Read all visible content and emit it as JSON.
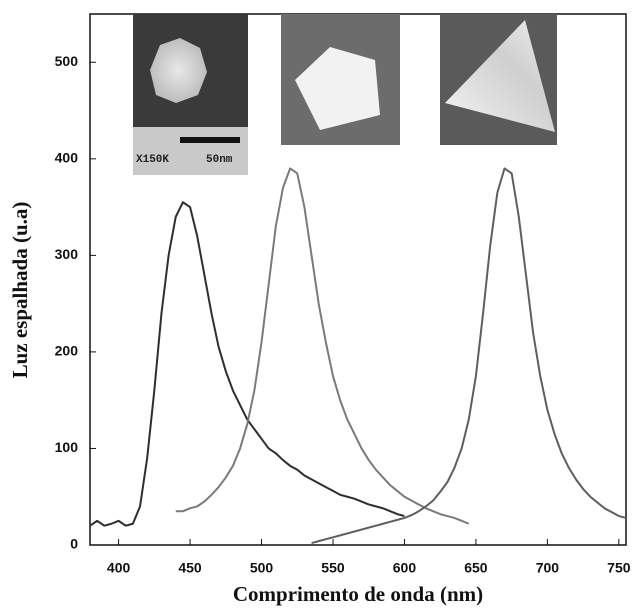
{
  "chart_data": {
    "type": "line",
    "x_label": "Comprimento de onda (nm)",
    "y_label": "Luz espalhada (u.a)",
    "annotations": [
      "X150K",
      "50nm"
    ],
    "x": [
      380,
      385,
      390,
      395,
      400,
      405,
      410,
      415,
      420,
      425,
      430,
      435,
      440,
      445,
      450,
      455,
      460,
      465,
      470,
      475,
      480,
      485,
      490,
      495,
      500,
      505,
      510,
      515,
      520,
      525,
      530,
      535,
      540,
      545,
      550,
      555,
      560,
      565,
      570,
      575,
      580,
      585,
      590,
      595,
      600,
      605,
      610,
      615,
      620,
      625,
      630,
      635,
      640,
      645,
      650,
      655,
      660,
      665,
      670,
      675,
      680,
      685,
      690,
      695,
      700,
      705,
      710,
      715,
      720,
      725,
      730,
      735,
      740,
      745,
      750,
      755
    ],
    "series": [
      {
        "color": "#2e2e2e",
        "values": [
          20,
          25,
          20,
          22,
          25,
          20,
          22,
          40,
          90,
          160,
          240,
          300,
          340,
          355,
          350,
          320,
          280,
          240,
          205,
          180,
          160,
          145,
          130,
          120,
          110,
          100,
          95,
          88,
          82,
          78,
          72,
          68,
          64,
          60,
          56,
          52,
          50,
          48,
          45,
          42,
          40,
          38,
          35,
          32,
          30,
          null,
          null,
          null,
          null,
          null,
          null,
          null,
          null,
          null,
          null,
          null,
          null,
          null,
          null,
          null,
          null,
          null,
          null,
          null,
          null,
          null,
          null,
          null,
          null,
          null,
          null,
          null,
          null,
          null,
          null,
          null
        ]
      },
      {
        "color": "#7a7a7a",
        "values": [
          null,
          null,
          null,
          null,
          null,
          null,
          null,
          null,
          null,
          null,
          null,
          null,
          35,
          35,
          38,
          40,
          45,
          52,
          60,
          70,
          82,
          100,
          125,
          160,
          210,
          270,
          330,
          370,
          390,
          385,
          350,
          300,
          250,
          210,
          175,
          150,
          130,
          115,
          100,
          88,
          78,
          70,
          62,
          56,
          50,
          46,
          42,
          38,
          35,
          32,
          30,
          28,
          25,
          22,
          null,
          null,
          null,
          null,
          null,
          null,
          null,
          null,
          null,
          null,
          null,
          null,
          null,
          null,
          null,
          null,
          null,
          null,
          null,
          null,
          null,
          null
        ]
      },
      {
        "color": "#5e5e5e",
        "values": [
          null,
          null,
          null,
          null,
          null,
          null,
          null,
          null,
          null,
          null,
          null,
          null,
          null,
          null,
          null,
          null,
          null,
          null,
          null,
          null,
          null,
          null,
          null,
          null,
          null,
          null,
          null,
          null,
          null,
          null,
          null,
          2,
          4,
          6,
          8,
          10,
          12,
          14,
          16,
          18,
          20,
          22,
          24,
          26,
          28,
          31,
          35,
          40,
          46,
          55,
          65,
          80,
          100,
          130,
          175,
          240,
          310,
          365,
          390,
          385,
          340,
          280,
          220,
          175,
          140,
          115,
          95,
          80,
          68,
          58,
          50,
          44,
          38,
          34,
          30,
          28
        ]
      }
    ],
    "xlim": [
      380,
      755
    ],
    "xticks": [
      400,
      450,
      500,
      550,
      600,
      650,
      700,
      750
    ],
    "ylim": [
      0,
      550
    ],
    "yticks": [
      0,
      100,
      200,
      300,
      400,
      500
    ],
    "grid": false
  }
}
